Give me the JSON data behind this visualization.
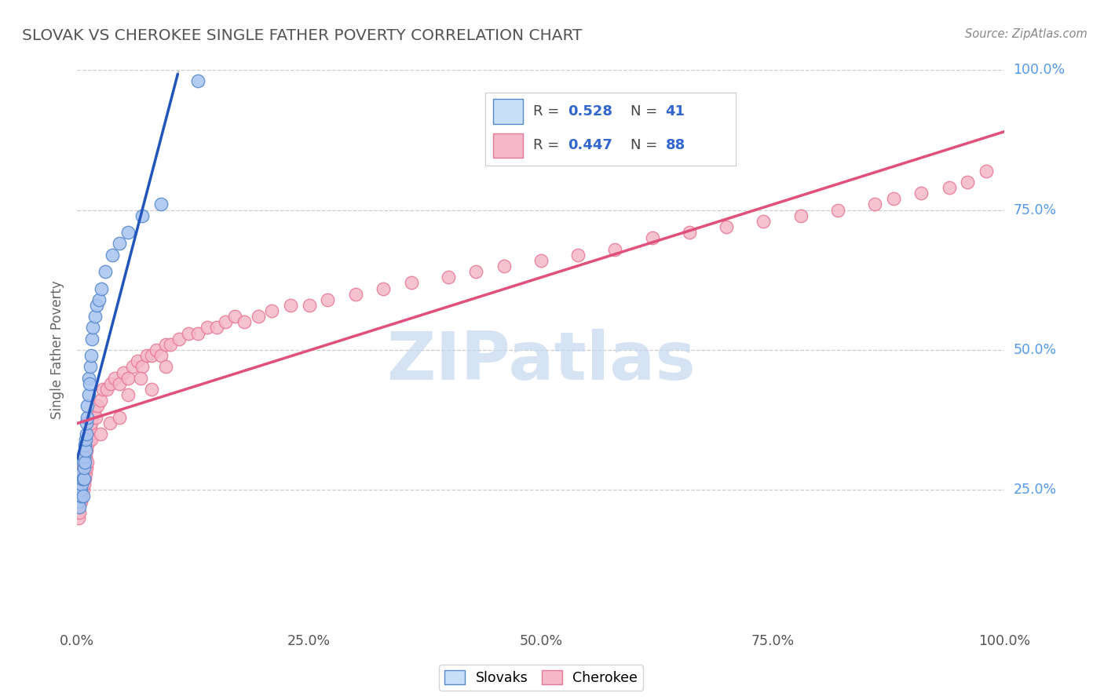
{
  "title": "SLOVAK VS CHEROKEE SINGLE FATHER POVERTY CORRELATION CHART",
  "source": "Source: ZipAtlas.com",
  "ylabel": "Single Father Poverty",
  "xlim": [
    0,
    1
  ],
  "ylim": [
    0,
    1
  ],
  "xtick_vals": [
    0.0,
    0.25,
    0.5,
    0.75,
    1.0
  ],
  "xtick_labels": [
    "0.0%",
    "25.0%",
    "50.0%",
    "75.0%",
    "100.0%"
  ],
  "ytick_vals": [
    0.25,
    0.5,
    0.75,
    1.0
  ],
  "ytick_labels": [
    "25.0%",
    "50.0%",
    "75.0%",
    "100.0%"
  ],
  "slovak_fill": "#a8c4f0",
  "slovak_edge": "#5588cc",
  "cherokee_fill": "#f4b8c8",
  "cherokee_edge": "#e87898",
  "line_slovak_color": "#2255bb",
  "line_cherokee_color": "#e0507a",
  "legend_box_color": "#c8dff8",
  "R_slovak": 0.528,
  "N_slovak": 41,
  "R_cherokee": 0.447,
  "N_cherokee": 88,
  "watermark_text": "ZIPatlas",
  "watermark_color": "#c5d8ee",
  "grid_color": "#cccccc",
  "title_color": "#555555",
  "ytick_color": "#5599ee",
  "xtick_color": "#555555",
  "source_color": "#888888",
  "sk_x": [
    0.001,
    0.002,
    0.003,
    0.003,
    0.004,
    0.004,
    0.005,
    0.005,
    0.005,
    0.006,
    0.006,
    0.006,
    0.007,
    0.007,
    0.007,
    0.008,
    0.008,
    0.009,
    0.009,
    0.01,
    0.01,
    0.011,
    0.011,
    0.012,
    0.012,
    0.013,
    0.014,
    0.015,
    0.016,
    0.017,
    0.019,
    0.021,
    0.023,
    0.026,
    0.03,
    0.038,
    0.045,
    0.055,
    0.07,
    0.09,
    0.13
  ],
  "sk_y": [
    0.23,
    0.22,
    0.25,
    0.26,
    0.24,
    0.25,
    0.26,
    0.27,
    0.28,
    0.24,
    0.27,
    0.3,
    0.27,
    0.29,
    0.31,
    0.3,
    0.33,
    0.32,
    0.34,
    0.35,
    0.37,
    0.38,
    0.4,
    0.42,
    0.45,
    0.44,
    0.47,
    0.49,
    0.52,
    0.54,
    0.56,
    0.58,
    0.59,
    0.61,
    0.64,
    0.67,
    0.69,
    0.71,
    0.74,
    0.76,
    0.98
  ],
  "ch_x": [
    0.001,
    0.002,
    0.003,
    0.003,
    0.004,
    0.004,
    0.005,
    0.005,
    0.006,
    0.006,
    0.006,
    0.007,
    0.007,
    0.008,
    0.008,
    0.009,
    0.009,
    0.01,
    0.01,
    0.011,
    0.011,
    0.012,
    0.013,
    0.014,
    0.015,
    0.016,
    0.018,
    0.02,
    0.022,
    0.025,
    0.028,
    0.032,
    0.036,
    0.04,
    0.045,
    0.05,
    0.055,
    0.06,
    0.065,
    0.07,
    0.075,
    0.08,
    0.085,
    0.09,
    0.095,
    0.1,
    0.11,
    0.12,
    0.13,
    0.14,
    0.15,
    0.16,
    0.17,
    0.18,
    0.195,
    0.21,
    0.23,
    0.25,
    0.27,
    0.3,
    0.33,
    0.36,
    0.4,
    0.43,
    0.46,
    0.5,
    0.54,
    0.58,
    0.62,
    0.66,
    0.7,
    0.74,
    0.78,
    0.82,
    0.86,
    0.88,
    0.91,
    0.94,
    0.96,
    0.98,
    0.015,
    0.025,
    0.035,
    0.045,
    0.055,
    0.068,
    0.08,
    0.095
  ],
  "ch_y": [
    0.2,
    0.21,
    0.23,
    0.24,
    0.25,
    0.23,
    0.24,
    0.26,
    0.25,
    0.27,
    0.29,
    0.26,
    0.28,
    0.27,
    0.29,
    0.31,
    0.28,
    0.29,
    0.32,
    0.3,
    0.33,
    0.34,
    0.36,
    0.36,
    0.37,
    0.38,
    0.39,
    0.38,
    0.4,
    0.41,
    0.43,
    0.43,
    0.44,
    0.45,
    0.44,
    0.46,
    0.45,
    0.47,
    0.48,
    0.47,
    0.49,
    0.49,
    0.5,
    0.49,
    0.51,
    0.51,
    0.52,
    0.53,
    0.53,
    0.54,
    0.54,
    0.55,
    0.56,
    0.55,
    0.56,
    0.57,
    0.58,
    0.58,
    0.59,
    0.6,
    0.61,
    0.62,
    0.63,
    0.64,
    0.65,
    0.66,
    0.67,
    0.68,
    0.7,
    0.71,
    0.72,
    0.73,
    0.74,
    0.75,
    0.76,
    0.77,
    0.78,
    0.79,
    0.8,
    0.82,
    0.34,
    0.35,
    0.37,
    0.38,
    0.42,
    0.45,
    0.43,
    0.47
  ]
}
